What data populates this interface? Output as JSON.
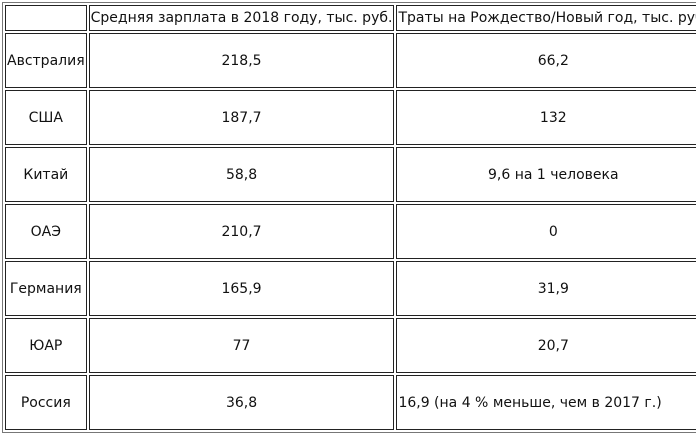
{
  "table": {
    "columns": [
      "Средняя зарплата в 2018 году, тыс. руб.",
      "Траты на Рождество/Новый год, тыс. руб."
    ],
    "rows": [
      {
        "country": "Австралия",
        "salary": "218,5",
        "spending": "66,2"
      },
      {
        "country": "США",
        "salary": "187,7",
        "spending": "132"
      },
      {
        "country": "Китай",
        "salary": "58,8",
        "spending": "9,6 на 1 человека"
      },
      {
        "country": "ОАЭ",
        "salary": "210,7",
        "spending": "0"
      },
      {
        "country": "Германия",
        "salary": "165,9",
        "spending": "31,9"
      },
      {
        "country": "ЮАР",
        "salary": "77",
        "spending": "20,7"
      },
      {
        "country": "Россия",
        "salary": "36,8",
        "spending": "16,9 (на 4 % меньше, чем в 2017 г.)"
      }
    ]
  }
}
